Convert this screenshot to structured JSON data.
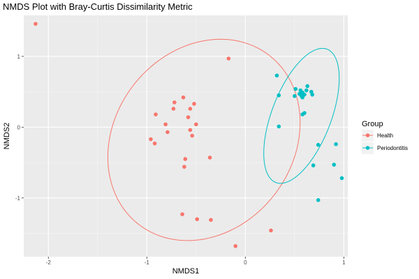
{
  "chart_data": {
    "type": "scatter",
    "title": "NMDS Plot with Bray-Curtis Dissimilarity Metric",
    "xlabel": "NMDS1",
    "ylabel": "NMDS2",
    "xlim": [
      -2.25,
      1.04
    ],
    "ylim": [
      -1.83,
      1.58
    ],
    "x_ticks": [
      -2,
      -1,
      0,
      1
    ],
    "x_tick_labels": [
      "-2",
      "-1",
      "0",
      "1"
    ],
    "y_ticks": [
      -1,
      0,
      1
    ],
    "y_tick_labels": [
      "-1",
      "0",
      "1"
    ],
    "grid": true,
    "legend": {
      "title": "Group",
      "position": "right"
    },
    "series": [
      {
        "name": "Health",
        "color": "#F8766D",
        "points": [
          [
            -2.13,
            1.46
          ],
          [
            -0.17,
            0.97
          ],
          [
            -0.63,
            0.42
          ],
          [
            -0.72,
            0.35
          ],
          [
            -0.52,
            0.33
          ],
          [
            -0.73,
            0.26
          ],
          [
            -0.56,
            0.26
          ],
          [
            -0.91,
            0.18
          ],
          [
            -0.58,
            0.14
          ],
          [
            -0.81,
            0.04
          ],
          [
            -0.5,
            0.04
          ],
          [
            -0.56,
            -0.04
          ],
          [
            -0.79,
            -0.07
          ],
          [
            -0.54,
            -0.12
          ],
          [
            -0.96,
            -0.17
          ],
          [
            -0.92,
            -0.23
          ],
          [
            -0.36,
            -0.43
          ],
          [
            -0.61,
            -0.45
          ],
          [
            -0.62,
            -0.56
          ],
          [
            -0.64,
            -1.23
          ],
          [
            -0.49,
            -1.3
          ],
          [
            -0.35,
            -1.31
          ],
          [
            0.26,
            -1.46
          ],
          [
            -0.1,
            -1.68
          ]
        ],
        "ellipse": {
          "center": [
            -0.42,
            -0.18
          ],
          "semi_axes": [
            0.95,
            1.44
          ],
          "rotation_deg": -12
        }
      },
      {
        "name": "Periodontitis",
        "color": "#00BFC4",
        "points": [
          [
            0.32,
            0.73
          ],
          [
            0.63,
            0.58
          ],
          [
            0.51,
            0.54
          ],
          [
            0.56,
            0.52
          ],
          [
            0.62,
            0.52
          ],
          [
            0.67,
            0.5
          ],
          [
            0.58,
            0.49
          ],
          [
            0.55,
            0.47
          ],
          [
            0.6,
            0.46
          ],
          [
            0.68,
            0.46
          ],
          [
            0.34,
            0.45
          ],
          [
            0.5,
            0.44
          ],
          [
            0.57,
            0.44
          ],
          [
            0.58,
            0.42
          ],
          [
            0.6,
            0.2
          ],
          [
            0.58,
            0.18
          ],
          [
            0.34,
            0.01
          ],
          [
            0.74,
            -0.25
          ],
          [
            0.92,
            -0.24
          ],
          [
            0.69,
            -0.54
          ],
          [
            0.9,
            -0.53
          ],
          [
            0.98,
            -0.72
          ],
          [
            0.74,
            -1.03
          ]
        ],
        "ellipse": {
          "center": [
            0.57,
            0.16
          ],
          "semi_axes": [
            0.31,
            0.98
          ],
          "rotation_deg": -14
        }
      }
    ]
  }
}
